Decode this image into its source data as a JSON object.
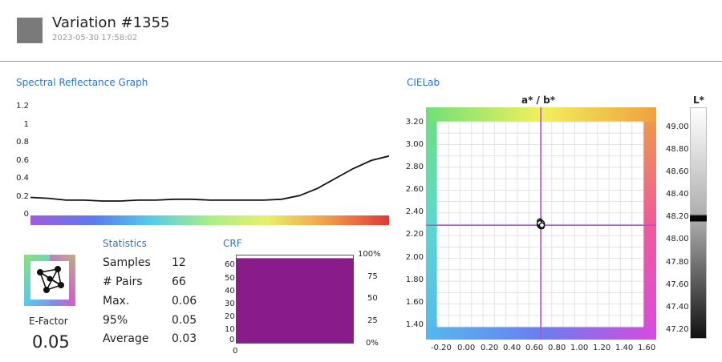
{
  "header": {
    "title": "Variation #1355",
    "timestamp": "2023-05-30 17:58:02",
    "swatch_color": "#7a7a7a"
  },
  "spectral": {
    "title": "Spectral Reflectance Graph",
    "y_ticks": [
      "1.2",
      "1",
      "0.8",
      "0.6",
      "0.4",
      "0.2",
      "0"
    ]
  },
  "statistics": {
    "title": "Statistics",
    "rows": [
      {
        "label": "Samples",
        "value": "12"
      },
      {
        "label": "# Pairs",
        "value": "66"
      },
      {
        "label": "Max.",
        "value": "0.06"
      },
      {
        "label": "95%",
        "value": "0.05"
      },
      {
        "label": "Average",
        "value": "0.03"
      }
    ]
  },
  "efactor": {
    "label": "E-Factor",
    "value": "0.05"
  },
  "crf": {
    "title": "CRF",
    "left_ticks": [
      "60",
      "50",
      "40",
      "30",
      "20",
      "10",
      "0"
    ],
    "right_ticks": [
      "100%",
      "75",
      "50",
      "25",
      "0%"
    ],
    "bottom_tick": "0",
    "bar_color": "#891c8a"
  },
  "cielab": {
    "title": "CIELab",
    "chart_title": "a* / b*",
    "b_ticks": [
      "3.20",
      "3.00",
      "2.80",
      "2.60",
      "2.40",
      "2.20",
      "2.00",
      "1.80",
      "1.60",
      "1.40"
    ],
    "a_ticks": [
      "-0.20",
      "0.00",
      "0.20",
      "0.40",
      "0.60",
      "0.80",
      "1.00",
      "1.20",
      "1.40",
      "1.60"
    ],
    "crosshair_color": "#b04fd0"
  },
  "lightness": {
    "title": "L*",
    "ticks": [
      "49.00",
      "48.80",
      "48.60",
      "48.40",
      "48.20",
      "48.00",
      "47.80",
      "47.60",
      "47.40",
      "47.20"
    ]
  },
  "chart_data": [
    {
      "type": "line",
      "title": "Spectral Reflectance Graph",
      "x": [
        0,
        0.05,
        0.1,
        0.15,
        0.2,
        0.25,
        0.3,
        0.35,
        0.4,
        0.45,
        0.5,
        0.55,
        0.6,
        0.65,
        0.7,
        0.75,
        0.8,
        0.85,
        0.9,
        0.95,
        1.0
      ],
      "series": [
        {
          "values": [
            0.2,
            0.19,
            0.17,
            0.17,
            0.16,
            0.16,
            0.17,
            0.17,
            0.18,
            0.18,
            0.17,
            0.17,
            0.17,
            0.17,
            0.18,
            0.22,
            0.3,
            0.41,
            0.52,
            0.61,
            0.66
          ]
        }
      ],
      "ylim": [
        0,
        1.2
      ],
      "grid": false
    },
    {
      "type": "bar",
      "title": "CRF",
      "categories": [
        ""
      ],
      "values": [
        63
      ],
      "ylim": [
        0,
        65
      ]
    },
    {
      "type": "scatter",
      "title": "a* / b*",
      "series": [
        {
          "points": [
            [
              0.67,
              2.33
            ],
            [
              0.68,
              2.31
            ],
            [
              0.69,
              2.3
            ],
            [
              0.67,
              2.29
            ],
            [
              0.68,
              2.28
            ],
            [
              0.69,
              2.28
            ],
            [
              0.68,
              2.32
            ],
            [
              0.67,
              2.3
            ],
            [
              0.69,
              2.31
            ],
            [
              0.68,
              2.29
            ],
            [
              0.67,
              2.31
            ],
            [
              0.69,
              2.29
            ]
          ]
        }
      ],
      "crosshair": [
        0.68,
        2.29
      ],
      "xlim": [
        -0.3,
        1.65
      ],
      "ylim": [
        1.3,
        3.3
      ],
      "grid": true
    },
    {
      "type": "scatter",
      "title": "L*",
      "values": [
        48.13,
        48.14,
        48.15,
        48.16,
        48.16,
        48.17,
        48.14,
        48.15,
        48.18,
        48.15,
        48.16,
        48.14
      ],
      "ylim": [
        47.1,
        49.1
      ]
    }
  ]
}
